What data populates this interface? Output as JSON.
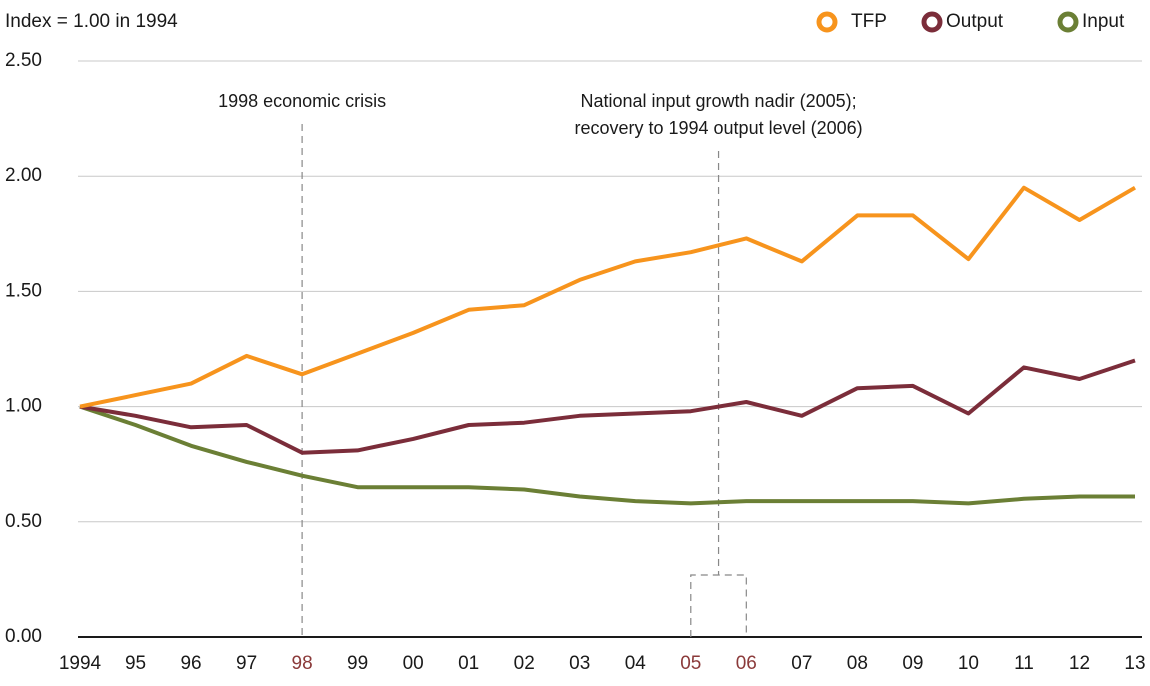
{
  "chart_data": {
    "type": "line",
    "y_label": "Index = 1.00 in 1994",
    "categories": [
      "1994",
      "95",
      "96",
      "97",
      "98",
      "99",
      "00",
      "01",
      "02",
      "03",
      "04",
      "05",
      "06",
      "07",
      "08",
      "09",
      "10",
      "11",
      "12",
      "13"
    ],
    "series": [
      {
        "name": "TFP",
        "color": "#f7941d",
        "values": [
          1.0,
          1.05,
          1.1,
          1.22,
          1.14,
          1.23,
          1.32,
          1.42,
          1.44,
          1.55,
          1.63,
          1.67,
          1.73,
          1.63,
          1.83,
          1.83,
          1.64,
          1.95,
          1.81,
          1.95
        ]
      },
      {
        "name": "Output",
        "color": "#7b2d3a",
        "values": [
          1.0,
          0.96,
          0.91,
          0.92,
          0.8,
          0.81,
          0.86,
          0.92,
          0.93,
          0.96,
          0.97,
          0.98,
          1.02,
          0.96,
          1.08,
          1.09,
          0.97,
          1.17,
          1.12,
          1.2
        ]
      },
      {
        "name": "Input",
        "color": "#6b7f35",
        "values": [
          1.0,
          0.92,
          0.83,
          0.76,
          0.7,
          0.65,
          0.65,
          0.65,
          0.64,
          0.61,
          0.59,
          0.58,
          0.59,
          0.59,
          0.59,
          0.59,
          0.58,
          0.6,
          0.61,
          0.61
        ]
      }
    ],
    "ylim": [
      0,
      2.5
    ],
    "yticks": [
      {
        "value": 0,
        "label": "0.00"
      },
      {
        "value": 0.5,
        "label": "0.50"
      },
      {
        "value": 1,
        "label": "1.00"
      },
      {
        "value": 1.5,
        "label": "1.50"
      },
      {
        "value": 2,
        "label": "2.00"
      },
      {
        "value": 2.5,
        "label": "2.50"
      }
    ],
    "grid": true,
    "legend": "top-right",
    "highlight_color": "#8b3a3a",
    "annotations": [
      {
        "lines": [
          "1998 economic crisis"
        ],
        "category_index": [
          4
        ]
      },
      {
        "lines": [
          "National input growth nadir (2005);",
          "recovery to 1994 output level (2006)"
        ],
        "category_index": [
          11,
          12
        ]
      }
    ]
  }
}
